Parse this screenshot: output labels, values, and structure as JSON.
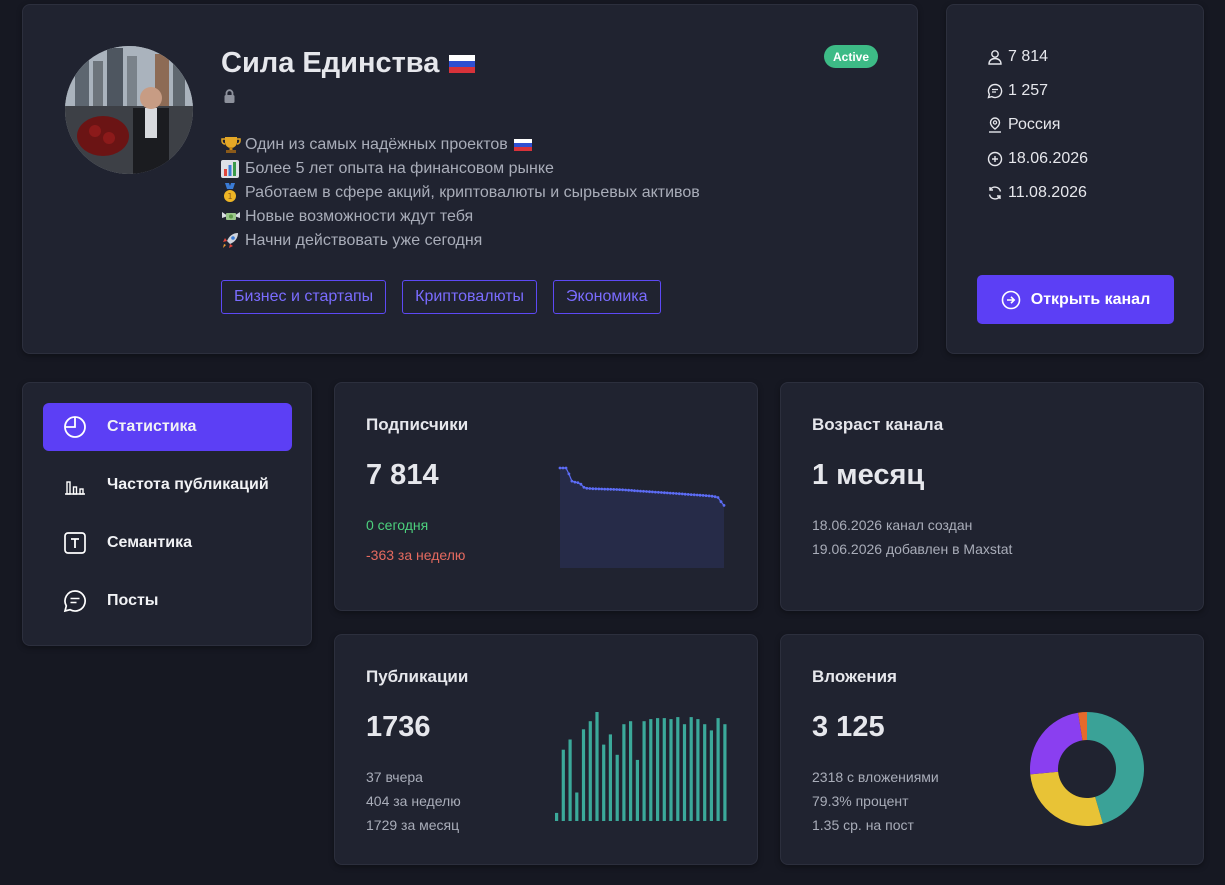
{
  "profile": {
    "title": "Сила Единства",
    "status": "Active",
    "description": [
      {
        "icon": "trophy-icon",
        "text": "Один из самых надёжных проектов",
        "flag": true
      },
      {
        "icon": "bar-chart-icon",
        "text": "Более 5 лет опыта на финансовом рынке",
        "flag": false
      },
      {
        "icon": "medal-icon",
        "text": "Работаем в сфере акций, криптовалюты и сырьевых активов",
        "flag": false
      },
      {
        "icon": "money-wings-icon",
        "text": "Новые возможности ждут тебя",
        "flag": false
      },
      {
        "icon": "rocket-icon",
        "text": "Начни действовать уже сегодня",
        "flag": false
      }
    ],
    "tags": [
      "Бизнес и стартапы",
      "Криптовалюты",
      "Экономика"
    ]
  },
  "info": {
    "subscribers": "7 814",
    "messages": "1 257",
    "country": "Россия",
    "created": "18.06.2026",
    "updated": "11.08.2026",
    "open_button": "Открыть канал"
  },
  "nav": [
    {
      "label": "Статистика",
      "icon": "pie-chart-icon",
      "active": true
    },
    {
      "label": "Частота публикаций",
      "icon": "bar-chart-icon",
      "active": false
    },
    {
      "label": "Семантика",
      "icon": "text-box-icon",
      "active": false
    },
    {
      "label": "Посты",
      "icon": "chat-icon",
      "active": false
    }
  ],
  "subscribers_card": {
    "title": "Подписчики",
    "value": "7 814",
    "today": "0 сегодня",
    "week": "-363 за неделю"
  },
  "age_card": {
    "title": "Возраст канала",
    "value": "1 месяц",
    "created_line": "18.06.2026 канал создан",
    "added_line": "19.06.2026 добавлен в Maxstat"
  },
  "publications_card": {
    "title": "Публикации",
    "value": "1736",
    "yesterday": "37 вчера",
    "week": "404 за неделю",
    "month": "1729 за месяц"
  },
  "attachments_card": {
    "title": "Вложения",
    "value": "3 125",
    "with_attachments": "2318 с вложениями",
    "percent": "79.3% процент",
    "avg": "1.35 ср. на пост"
  },
  "colors": {
    "accent": "#5c3ff5",
    "positive": "#3dbb86",
    "negative": "#e56a5f",
    "bars": "#3ba99a"
  },
  "chart_data": [
    {
      "type": "area",
      "values": [
        8177,
        8177,
        8177,
        8120,
        8050,
        8040,
        8035,
        8020,
        7990,
        7980,
        7978,
        7976,
        7975,
        7974,
        7973,
        7972,
        7971,
        7970,
        7969,
        7968,
        7967,
        7965,
        7963,
        7961,
        7959,
        7957,
        7955,
        7953,
        7951,
        7949,
        7947,
        7945,
        7943,
        7941,
        7939,
        7937,
        7935,
        7933,
        7931,
        7929,
        7927,
        7925,
        7923,
        7921,
        7919,
        7917,
        7915,
        7913,
        7911,
        7909,
        7906,
        7903,
        7898,
        7890,
        7850,
        7814
      ],
      "series_color": "#5c6cf5"
    },
    {
      "type": "bar",
      "values": [
        8,
        70,
        80,
        28,
        90,
        98,
        107,
        75,
        85,
        65,
        95,
        98,
        60,
        98,
        100,
        101,
        101,
        100,
        102,
        95,
        102,
        100,
        95,
        89,
        101,
        95
      ],
      "series_color": "#3ba99a"
    },
    {
      "type": "pie",
      "slices": [
        {
          "value": 45.5,
          "color": "#3aa297"
        },
        {
          "value": 28,
          "color": "#e8c336"
        },
        {
          "value": 24,
          "color": "#8a3ff0"
        },
        {
          "value": 2.5,
          "color": "#e66a2c"
        }
      ]
    }
  ]
}
